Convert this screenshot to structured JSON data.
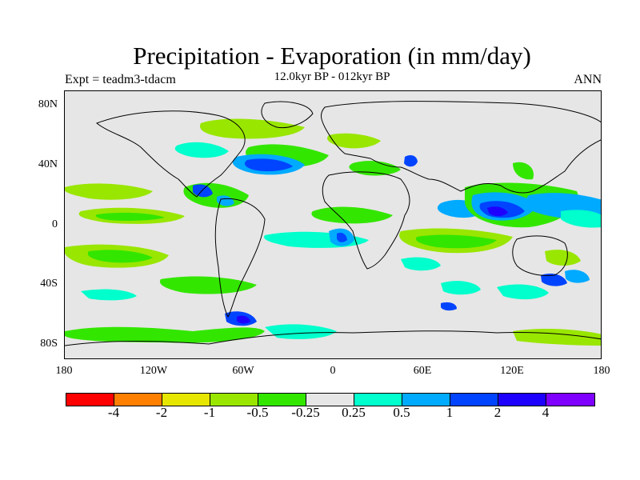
{
  "title": "Precipitation - Evaporation (in mm/day)",
  "subtitle": "12.0kyr BP - 012kyr BP",
  "left_label": "Expt = teadm3-tdacm",
  "right_label": "ANN",
  "lat_labels": [
    "80N",
    "40N",
    "0",
    "40S",
    "80S"
  ],
  "lon_labels": [
    "180",
    "120W",
    "60W",
    "0",
    "60E",
    "120E",
    "180"
  ],
  "colorbar": {
    "colors": [
      "#ff0000",
      "#ff7f00",
      "#e6e600",
      "#99e600",
      "#33e600",
      "#e6e6e6",
      "#00ffcc",
      "#00aaff",
      "#0044ff",
      "#1e00ff",
      "#7f00ff"
    ],
    "labels": [
      "-4",
      "-2",
      "-1",
      "-0.5",
      "-0.25",
      "0.25",
      "0.5",
      "1",
      "2",
      "4"
    ]
  },
  "palette": {
    "ocean_background": "#e6e6e6",
    "light_green": "#99e600",
    "green": "#33e600",
    "cyan": "#00ffcc",
    "light_blue": "#00aaff",
    "blue": "#0044ff",
    "dark_blue": "#1e00ff"
  }
}
